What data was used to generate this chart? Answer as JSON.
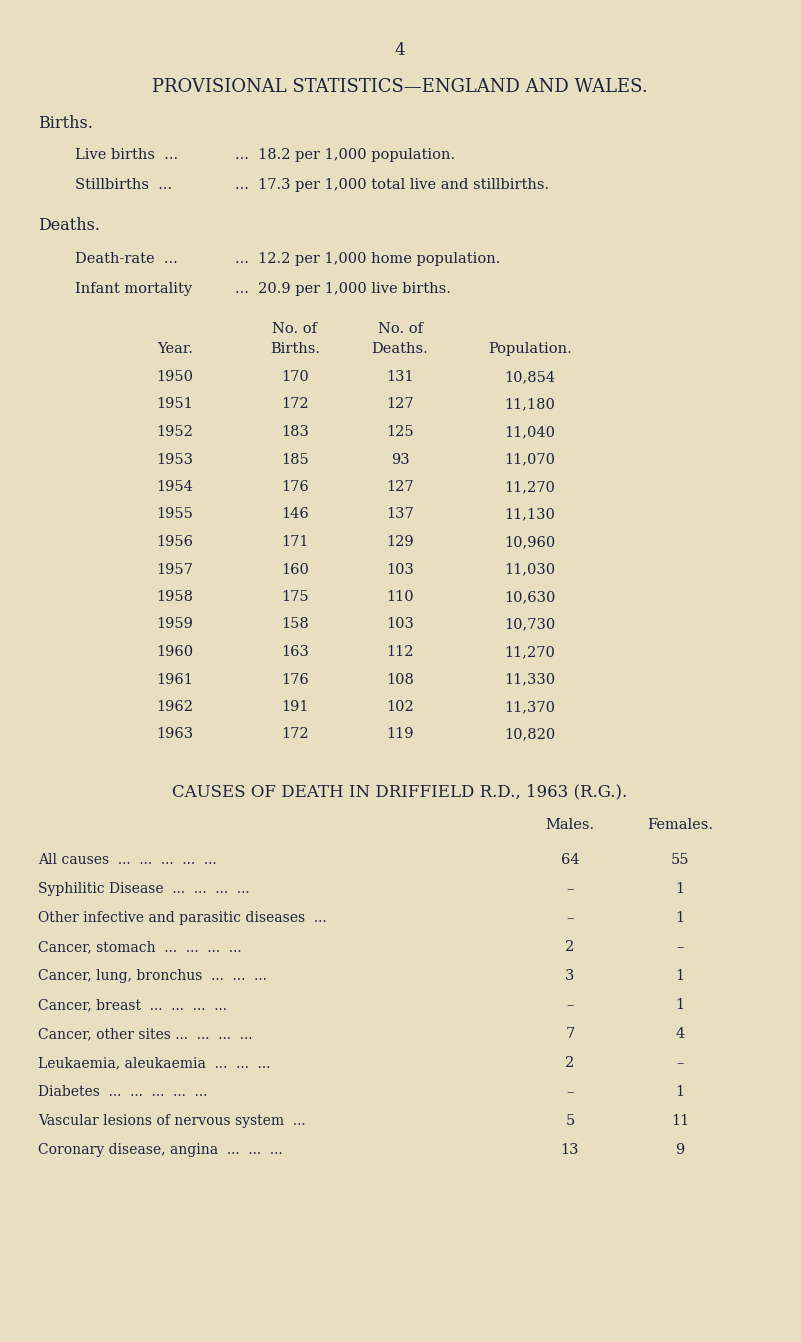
{
  "bg_color": "#e8dfc0",
  "text_color": "#1c2340",
  "page_number": "4",
  "main_title": "PROVISIONAL STATISTICS—ENGLAND AND WALES.",
  "births_header": "Births.",
  "live_births_left": "Live births  ...",
  "live_births_right": "...  18.2 per 1,000 population.",
  "stillbirths_left": "Stillbirths  ...",
  "stillbirths_right": "...  17.3 per 1,000 total live and stillbirths.",
  "deaths_header": "Deaths.",
  "death_rate_left": "Death-rate  ...",
  "death_rate_right": "...  12.2 per 1,000 home population.",
  "infant_left": "Infant mortality",
  "infant_right": "...  20.9 per 1,000 live births.",
  "col_header_noof": "No. of",
  "col_year": "Year.",
  "col_births": "Births.",
  "col_deaths": "Deaths.",
  "col_population": "Population.",
  "table_data": [
    [
      "1950",
      "170",
      "131",
      "10,854"
    ],
    [
      "1951",
      "172",
      "127",
      "11,180"
    ],
    [
      "1952",
      "183",
      "125",
      "11,040"
    ],
    [
      "1953",
      "185",
      "93",
      "11,070"
    ],
    [
      "1954",
      "176",
      "127",
      "11,270"
    ],
    [
      "1955",
      "146",
      "137",
      "11,130"
    ],
    [
      "1956",
      "171",
      "129",
      "10,960"
    ],
    [
      "1957",
      "160",
      "103",
      "11,030"
    ],
    [
      "1958",
      "175",
      "110",
      "10,630"
    ],
    [
      "1959",
      "158",
      "103",
      "10,730"
    ],
    [
      "1960",
      "163",
      "112",
      "11,270"
    ],
    [
      "1961",
      "176",
      "108",
      "11,330"
    ],
    [
      "1962",
      "191",
      "102",
      "11,370"
    ],
    [
      "1963",
      "172",
      "119",
      "10,820"
    ]
  ],
  "causes_title": "CAUSES OF DEATH IN DRIFFIELD R.D., 1963 (R.G.).",
  "causes_males": "Males.",
  "causes_females": "Females.",
  "causes_data": [
    [
      "All causes  ...  ...  ...  ...  ...",
      "64",
      "55"
    ],
    [
      "Syphilitic Disease  ...  ...  ...  ...",
      "–",
      "1"
    ],
    [
      "Other infective and parasitic diseases  ...",
      "–",
      "1"
    ],
    [
      "Cancer, stomach  ...  ...  ...  ...",
      "2",
      "–"
    ],
    [
      "Cancer, lung, bronchus  ...  ...  ...",
      "3",
      "1"
    ],
    [
      "Cancer, breast  ...  ...  ...  ...",
      "–",
      "1"
    ],
    [
      "Cancer, other sites ...  ...  ...  ...",
      "7",
      "4"
    ],
    [
      "Leukaemia, aleukaemia  ...  ...  ...",
      "2",
      "–"
    ],
    [
      "Diabetes  ...  ...  ...  ...  ...",
      "–",
      "1"
    ],
    [
      "Vascular lesions of nervous system  ...",
      "5",
      "11"
    ],
    [
      "Coronary disease, angina  ...  ...  ...",
      "13",
      "9"
    ]
  ]
}
